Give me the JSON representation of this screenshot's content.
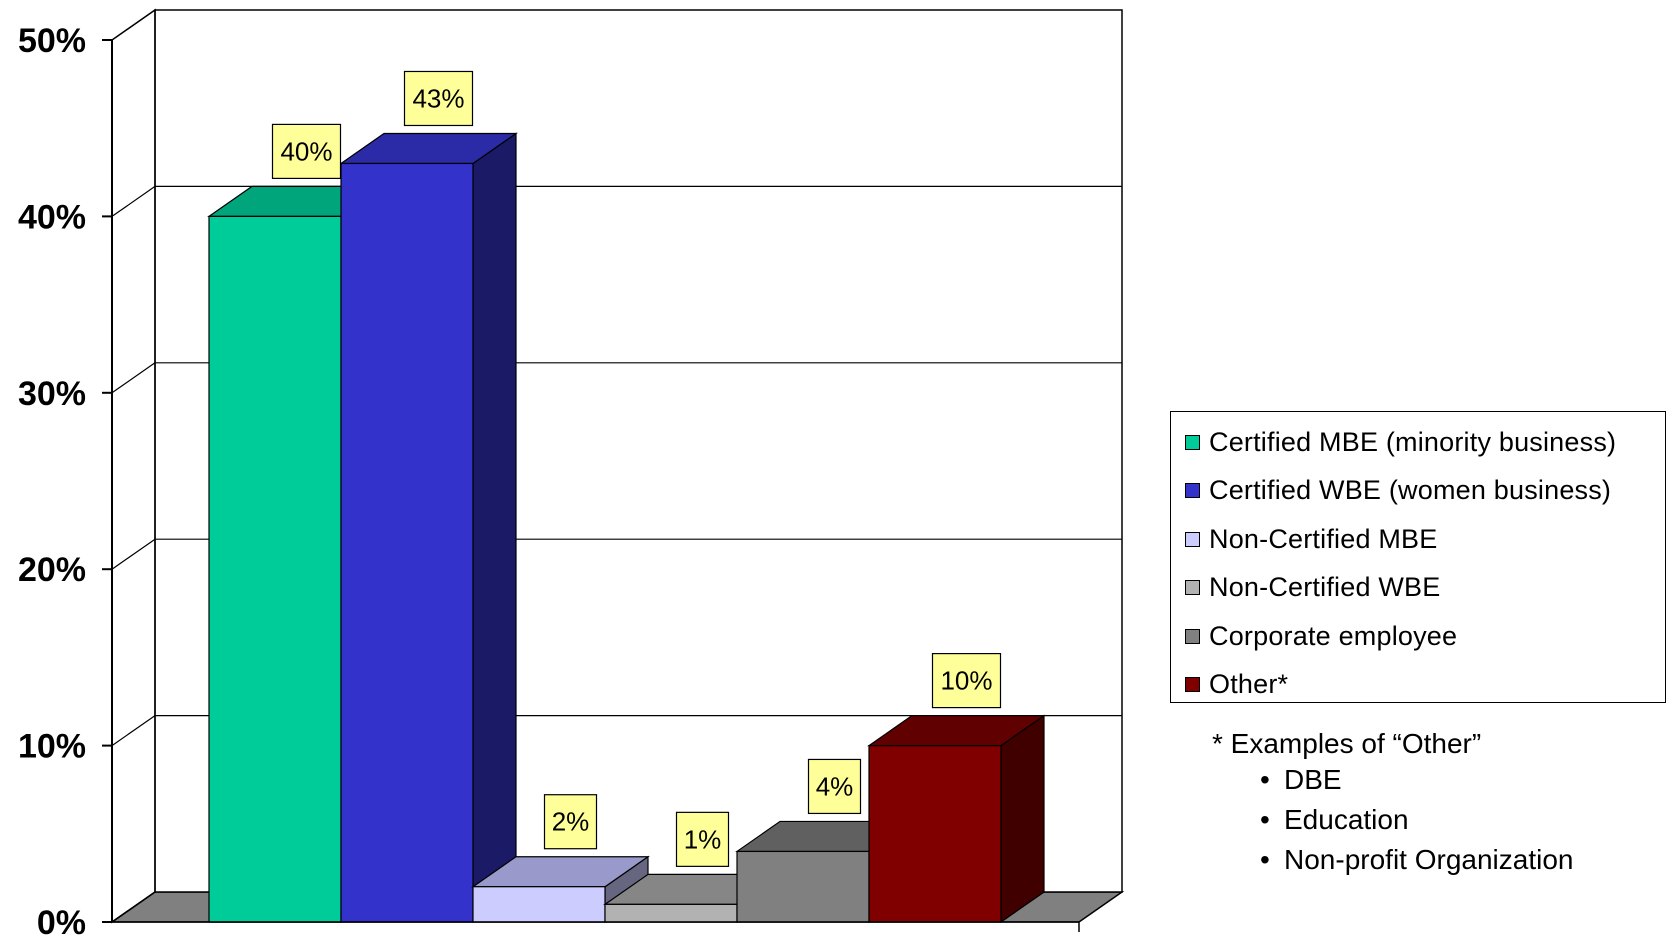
{
  "chart_data": {
    "type": "bar",
    "style": "3d-clustered-column",
    "title": "",
    "xlabel": "",
    "ylabel": "",
    "ylim": [
      0,
      50
    ],
    "y_ticks": [
      "0%",
      "10%",
      "20%",
      "30%",
      "40%",
      "50%"
    ],
    "y_tick_values": [
      0,
      10,
      20,
      30,
      40,
      50
    ],
    "grid": true,
    "legend_position": "right",
    "series": [
      {
        "name": "Certified MBE (minority business)",
        "value": 40,
        "label": "40%",
        "color": "#00CC99",
        "side_color": "#009473",
        "top_color": "#00A57C"
      },
      {
        "name": "Certified WBE (women business)",
        "value": 43,
        "label": "43%",
        "color": "#3333CC",
        "side_color": "#1A1A66",
        "top_color": "#2B2BA8"
      },
      {
        "name": "Non-Certified MBE",
        "value": 2,
        "label": "2%",
        "color": "#CCCCFF",
        "side_color": "#666680",
        "top_color": "#9999CC"
      },
      {
        "name": "Non-Certified WBE",
        "value": 1,
        "label": "1%",
        "color": "#B2B2B2",
        "side_color": "#595959",
        "top_color": "#868686"
      },
      {
        "name": "Corporate employee",
        "value": 4,
        "label": "4%",
        "color": "#808080",
        "side_color": "#404040",
        "top_color": "#606060"
      },
      {
        "name": "Other*",
        "value": 10,
        "label": "10%",
        "color": "#800000",
        "side_color": "#400000",
        "top_color": "#600000"
      }
    ],
    "colors": {
      "floor": "#808080",
      "wall": "#ffffff",
      "data_label_bg": "#FFFF99",
      "axis": "#000000"
    }
  },
  "note": {
    "title": "* Examples of “Other”",
    "bullet": "•",
    "items": [
      "DBE",
      "Education",
      "Non-profit Organization"
    ]
  }
}
